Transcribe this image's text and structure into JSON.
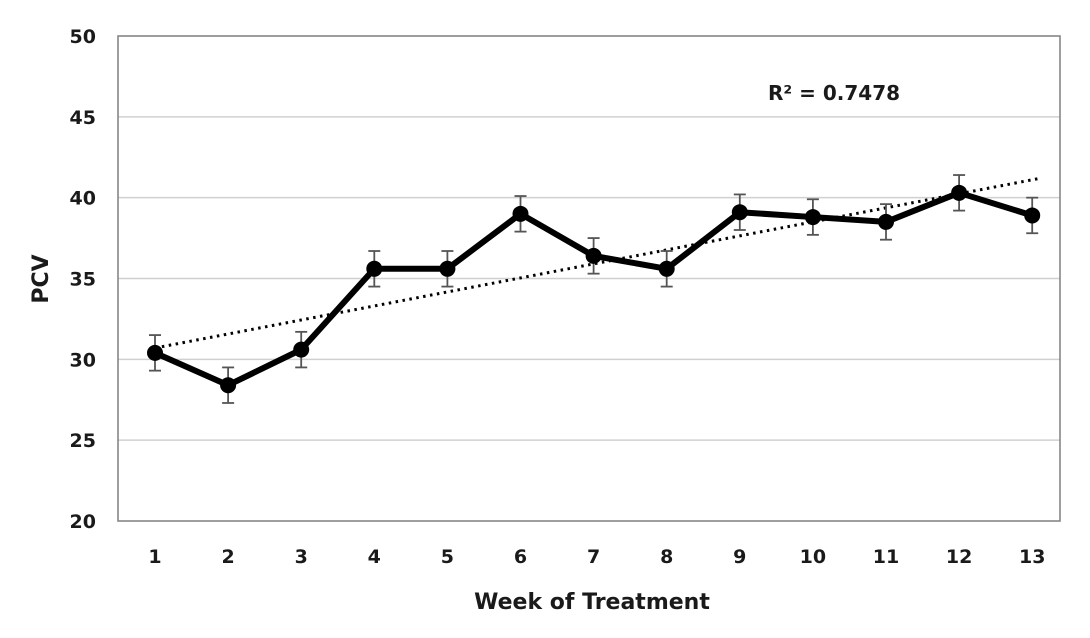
{
  "chart_data": {
    "type": "line",
    "title": "",
    "xlabel": "Week of Treatment",
    "ylabel": "PCV",
    "categories": [
      "1",
      "2",
      "3",
      "4",
      "5",
      "6",
      "7",
      "8",
      "9",
      "10",
      "11",
      "12",
      "13"
    ],
    "series": [
      {
        "values": [
          30.4,
          28.4,
          30.6,
          35.6,
          35.6,
          39.0,
          36.4,
          35.6,
          39.1,
          38.8,
          38.5,
          40.3,
          38.9
        ],
        "error": [
          1.1,
          1.1,
          1.1,
          1.1,
          1.1,
          1.1,
          1.1,
          1.1,
          1.1,
          1.1,
          1.1,
          1.1,
          1.1
        ],
        "color": "#000000"
      }
    ],
    "trendline": {
      "type": "linear",
      "start": 30.7,
      "end": 41.2,
      "style": "dotted"
    },
    "annotation": {
      "text": "R² = 0.7478"
    },
    "ylim": [
      20,
      50
    ],
    "yticks": [
      "20",
      "25",
      "30",
      "35",
      "40",
      "45",
      "50"
    ],
    "grid": true,
    "legend": "none",
    "colors": {
      "grid": "#d0d0d0",
      "border": "#7f7f7f",
      "line": "#000000",
      "errorbar": "#555555"
    }
  }
}
